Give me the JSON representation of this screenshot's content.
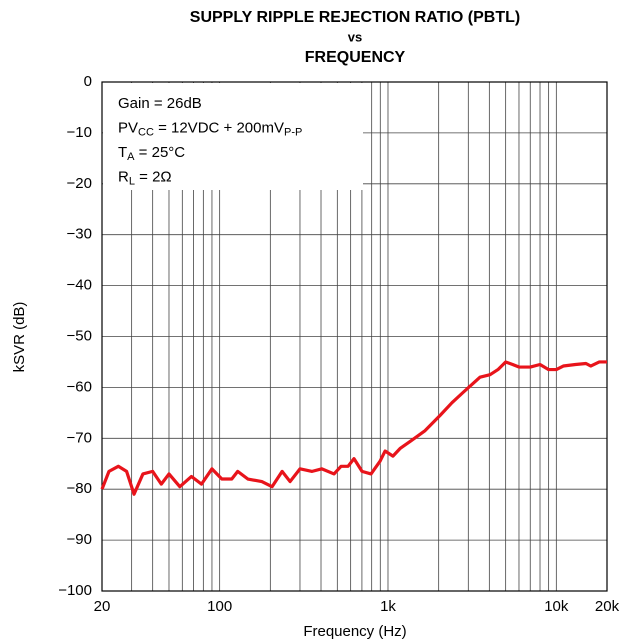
{
  "chart_data": {
    "type": "line",
    "title": [
      "SUPPLY RIPPLE REJECTION RATIO (PBTL)",
      "vs",
      "FREQUENCY"
    ],
    "xlabel": "Frequency (Hz)",
    "ylabel": "kSVR (dB)",
    "log_x": true,
    "grid": true,
    "xlim": [
      20,
      20000
    ],
    "ylim": [
      -100,
      0
    ],
    "xticks": [
      20,
      100,
      {
        "value": 1000,
        "label": "1k"
      },
      {
        "value": 10000,
        "label": "10k"
      },
      {
        "value": 20000,
        "label": "20k"
      }
    ],
    "x_grid": [
      30,
      40,
      50,
      60,
      70,
      80,
      90,
      200,
      300,
      400,
      500,
      600,
      700,
      800,
      900,
      2000,
      3000,
      4000,
      5000,
      6000,
      7000,
      8000,
      9000
    ],
    "yticks": [
      0,
      {
        "value": -10,
        "label": "−10"
      },
      {
        "value": -20,
        "label": "−20"
      },
      {
        "value": -30,
        "label": "−30"
      },
      {
        "value": -40,
        "label": "−40"
      },
      {
        "value": -50,
        "label": "−50"
      },
      {
        "value": -60,
        "label": "−60"
      },
      {
        "value": -70,
        "label": "−70"
      },
      {
        "value": -80,
        "label": "−80"
      },
      {
        "value": -90,
        "label": "−90"
      },
      {
        "value": -100,
        "label": "−100"
      }
    ],
    "legend": [
      [
        "Gain = 26dB"
      ],
      [
        "PV",
        "CC",
        " = 12VDC + 200mV",
        "P-P"
      ],
      [
        "T",
        "A",
        " = 25°C"
      ],
      [
        "R",
        "L",
        " = 2Ω"
      ]
    ],
    "series": [
      {
        "color": "#e8141b",
        "x": [
          20,
          22,
          25,
          28,
          31,
          35,
          40,
          45,
          50,
          58,
          68,
          78,
          90,
          103,
          118,
          128,
          147,
          178,
          205,
          235,
          262,
          300,
          354,
          405,
          478,
          526,
          579,
          628,
          701,
          793,
          897,
          961,
          1070,
          1180,
          1370,
          1660,
          2040,
          2400,
          2790,
          3520,
          4040,
          4500,
          5000,
          5500,
          6000,
          7000,
          8000,
          9000,
          10000,
          11000,
          13000,
          15000,
          16000,
          18000,
          20000
        ],
        "values": [
          -80,
          -76.5,
          -75.5,
          -76.5,
          -81,
          -77,
          -76.5,
          -79,
          -77,
          -79.5,
          -77.5,
          -79,
          -76,
          -78,
          -78,
          -76.5,
          -78,
          -78.5,
          -79.5,
          -76.5,
          -78.5,
          -76,
          -76.5,
          -76,
          -77,
          -75.5,
          -75.5,
          -74,
          -76.5,
          -77,
          -74.5,
          -72.5,
          -73.5,
          -72,
          -70.5,
          -68.5,
          -65.5,
          -63,
          -61,
          -58,
          -57.5,
          -56.5,
          -55,
          -55.5,
          -56,
          -56,
          -55.5,
          -56.5,
          -56.5,
          -55.8,
          -55.5,
          -55.3,
          -55.8,
          -55,
          -55
        ]
      }
    ]
  }
}
